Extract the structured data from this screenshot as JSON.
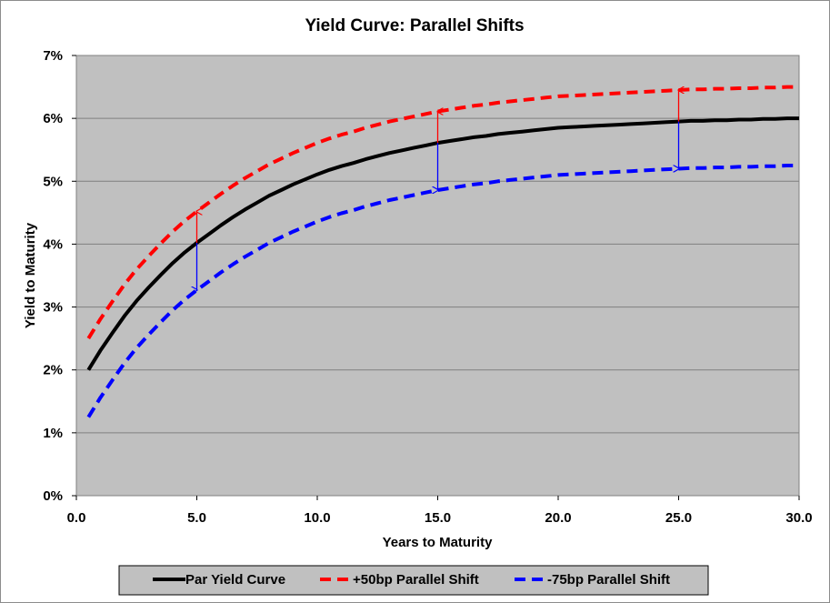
{
  "chart_data": {
    "type": "line",
    "title": "Yield Curve: Parallel Shifts",
    "xlabel": "Years to Maturity",
    "ylabel": "Yield to Maturity",
    "xlim": [
      0,
      30
    ],
    "ylim": [
      0,
      7
    ],
    "x_ticks": [
      "0.0",
      "5.0",
      "10.0",
      "15.0",
      "20.0",
      "25.0",
      "30.0"
    ],
    "y_ticks": [
      "0%",
      "1%",
      "2%",
      "3%",
      "4%",
      "5%",
      "6%",
      "7%"
    ],
    "grid": true,
    "legend_position": "bottom",
    "plot_background": "#c0c0c0",
    "x": [
      0.5,
      1,
      1.5,
      2,
      2.5,
      3,
      3.5,
      4,
      4.5,
      5,
      5.5,
      6,
      6.5,
      7,
      7.5,
      8,
      8.5,
      9,
      9.5,
      10,
      10.5,
      11,
      11.5,
      12,
      12.5,
      13,
      13.5,
      14,
      14.5,
      15,
      15.5,
      16,
      16.5,
      17,
      17.5,
      18,
      18.5,
      19,
      19.5,
      20,
      20.5,
      21,
      21.5,
      22,
      22.5,
      23,
      23.5,
      24,
      24.5,
      25,
      25.5,
      26,
      26.5,
      27,
      27.5,
      28,
      28.5,
      29,
      29.5,
      30
    ],
    "series": [
      {
        "name": "Par Yield Curve",
        "color": "#000000",
        "dash": "solid",
        "values": [
          2.0,
          2.31,
          2.59,
          2.86,
          3.1,
          3.31,
          3.51,
          3.7,
          3.87,
          4.02,
          4.16,
          4.3,
          4.43,
          4.55,
          4.66,
          4.77,
          4.86,
          4.95,
          5.03,
          5.11,
          5.18,
          5.24,
          5.29,
          5.35,
          5.4,
          5.45,
          5.49,
          5.53,
          5.57,
          5.61,
          5.64,
          5.67,
          5.7,
          5.72,
          5.75,
          5.77,
          5.79,
          5.81,
          5.83,
          5.85,
          5.86,
          5.87,
          5.88,
          5.89,
          5.9,
          5.91,
          5.92,
          5.93,
          5.94,
          5.95,
          5.96,
          5.96,
          5.97,
          5.97,
          5.98,
          5.98,
          5.99,
          5.99,
          6.0,
          6.0
        ]
      },
      {
        "name": "+50bp Parallel Shift",
        "color": "#ff0000",
        "dash": "dashed",
        "values": [
          2.5,
          2.81,
          3.09,
          3.36,
          3.6,
          3.81,
          4.01,
          4.2,
          4.37,
          4.52,
          4.66,
          4.8,
          4.93,
          5.05,
          5.16,
          5.27,
          5.36,
          5.45,
          5.53,
          5.61,
          5.68,
          5.74,
          5.79,
          5.85,
          5.9,
          5.95,
          5.99,
          6.03,
          6.07,
          6.11,
          6.14,
          6.17,
          6.2,
          6.22,
          6.25,
          6.27,
          6.29,
          6.31,
          6.33,
          6.35,
          6.36,
          6.37,
          6.38,
          6.39,
          6.4,
          6.41,
          6.42,
          6.43,
          6.44,
          6.45,
          6.46,
          6.46,
          6.47,
          6.47,
          6.48,
          6.48,
          6.49,
          6.49,
          6.5,
          6.5
        ]
      },
      {
        "name": "-75bp Parallel Shift",
        "color": "#0000ff",
        "dash": "dashed",
        "values": [
          1.25,
          1.56,
          1.84,
          2.11,
          2.35,
          2.56,
          2.76,
          2.95,
          3.12,
          3.27,
          3.41,
          3.55,
          3.68,
          3.8,
          3.91,
          4.02,
          4.11,
          4.2,
          4.28,
          4.36,
          4.43,
          4.49,
          4.54,
          4.6,
          4.65,
          4.7,
          4.74,
          4.78,
          4.82,
          4.86,
          4.89,
          4.92,
          4.95,
          4.97,
          5.0,
          5.02,
          5.04,
          5.06,
          5.08,
          5.1,
          5.11,
          5.12,
          5.13,
          5.14,
          5.15,
          5.16,
          5.17,
          5.18,
          5.19,
          5.2,
          5.21,
          5.21,
          5.22,
          5.22,
          5.23,
          5.23,
          5.24,
          5.24,
          5.25,
          5.25
        ]
      }
    ],
    "annotations": [
      {
        "type": "arrow",
        "x": 5,
        "from": 4.02,
        "to": 4.52,
        "color": "#ff0000"
      },
      {
        "type": "arrow",
        "x": 5,
        "from": 4.02,
        "to": 3.27,
        "color": "#0000ff"
      },
      {
        "type": "arrow",
        "x": 15,
        "from": 5.61,
        "to": 6.11,
        "color": "#ff0000"
      },
      {
        "type": "arrow",
        "x": 15,
        "from": 5.61,
        "to": 4.86,
        "color": "#0000ff"
      },
      {
        "type": "arrow",
        "x": 25,
        "from": 5.95,
        "to": 6.45,
        "color": "#ff0000"
      },
      {
        "type": "arrow",
        "x": 25,
        "from": 5.95,
        "to": 5.2,
        "color": "#0000ff"
      }
    ]
  }
}
